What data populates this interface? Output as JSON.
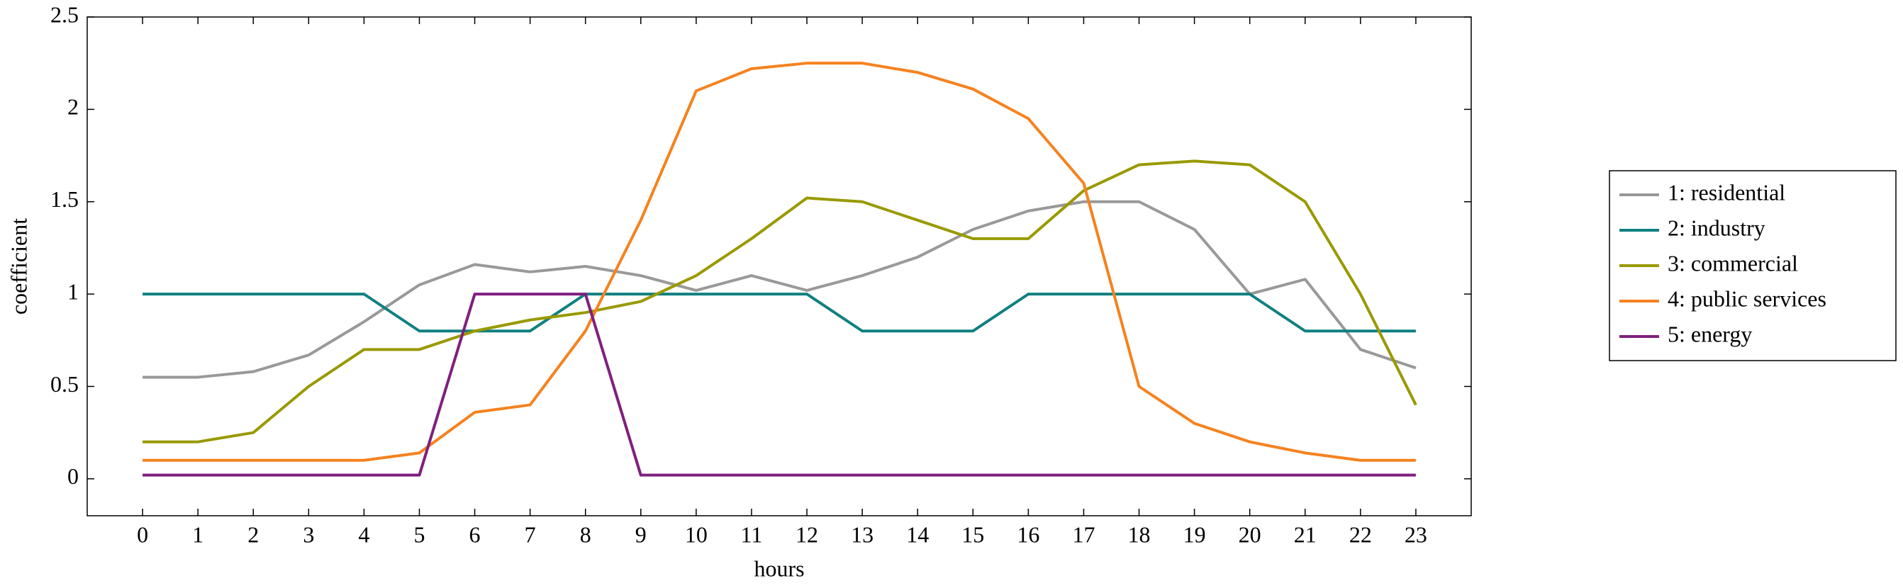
{
  "chart_data": {
    "type": "line",
    "x_label": "hours",
    "y_label": "coefficient",
    "x": [
      0,
      1,
      2,
      3,
      4,
      5,
      6,
      7,
      8,
      9,
      10,
      11,
      12,
      13,
      14,
      15,
      16,
      17,
      18,
      19,
      20,
      21,
      22,
      23
    ],
    "xlim": [
      -1,
      24
    ],
    "xticks": [
      0,
      1,
      2,
      3,
      4,
      5,
      6,
      7,
      8,
      9,
      10,
      11,
      12,
      13,
      14,
      15,
      16,
      17,
      18,
      19,
      20,
      21,
      22,
      23
    ],
    "ylim": [
      -0.2,
      2.5
    ],
    "yticks": [
      0,
      0.5,
      1,
      1.5,
      2,
      2.5
    ],
    "grid": false,
    "legend": "outside right",
    "series": [
      {
        "name": "1: residential",
        "color": "#999999",
        "values": [
          0.55,
          0.55,
          0.58,
          0.67,
          0.85,
          1.05,
          1.16,
          1.12,
          1.15,
          1.1,
          1.02,
          1.1,
          1.02,
          1.1,
          1.2,
          1.35,
          1.45,
          1.5,
          1.5,
          1.35,
          1.0,
          1.08,
          0.7,
          0.6
        ]
      },
      {
        "name": "2: industry",
        "color": "#108080",
        "values": [
          1,
          1,
          1,
          1,
          1,
          0.8,
          0.8,
          0.8,
          1,
          1,
          1,
          1,
          1,
          0.8,
          0.8,
          0.8,
          1,
          1,
          1,
          1,
          1,
          0.8,
          0.8,
          0.8
        ]
      },
      {
        "name": "3: commercial",
        "color": "#999900",
        "values": [
          0.2,
          0.2,
          0.25,
          0.5,
          0.7,
          0.7,
          0.8,
          0.86,
          0.9,
          0.96,
          1.1,
          1.3,
          1.52,
          1.5,
          1.4,
          1.3,
          1.3,
          1.56,
          1.7,
          1.72,
          1.7,
          1.5,
          1.0,
          0.4
        ]
      },
      {
        "name": "4: public services",
        "color": "#f5821f",
        "values": [
          0.1,
          0.1,
          0.1,
          0.1,
          0.1,
          0.14,
          0.36,
          0.4,
          0.8,
          1.4,
          2.1,
          2.22,
          2.25,
          2.25,
          2.2,
          2.11,
          1.95,
          1.6,
          0.5,
          0.3,
          0.2,
          0.14,
          0.1,
          0.1
        ]
      },
      {
        "name": "5: energy",
        "color": "#7f1f7f",
        "values": [
          0.02,
          0.02,
          0.02,
          0.02,
          0.02,
          0.02,
          1,
          1,
          1,
          0.02,
          0.02,
          0.02,
          0.02,
          0.02,
          0.02,
          0.02,
          0.02,
          0.02,
          0.02,
          0.02,
          0.02,
          0.02,
          0.02,
          0.02
        ]
      }
    ]
  }
}
